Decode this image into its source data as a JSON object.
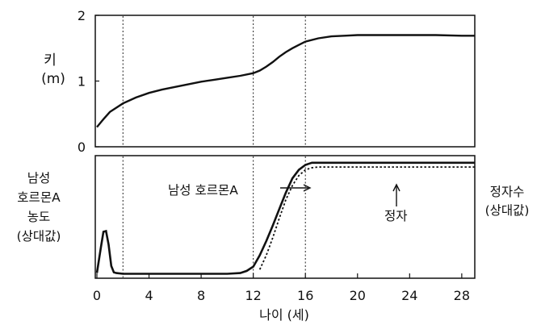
{
  "chart_data": [
    {
      "type": "line",
      "ylabel_lines": [
        "키",
        "(m)"
      ],
      "xlim": [
        0,
        29
      ],
      "ylim": [
        0,
        2
      ],
      "yticks": [
        0,
        1,
        2
      ],
      "series": [
        {
          "x": [
            0,
            0.5,
            1,
            2,
            3,
            4,
            5,
            6,
            7,
            8,
            9,
            10,
            11,
            12,
            12.5,
            13,
            13.5,
            14,
            14.5,
            15,
            15.5,
            16,
            17,
            18,
            19,
            20,
            22,
            24,
            26,
            28,
            29
          ],
          "y": [
            0.3,
            0.42,
            0.53,
            0.66,
            0.75,
            0.82,
            0.87,
            0.91,
            0.95,
            0.99,
            1.02,
            1.05,
            1.08,
            1.12,
            1.16,
            1.22,
            1.29,
            1.37,
            1.44,
            1.5,
            1.55,
            1.6,
            1.65,
            1.68,
            1.69,
            1.7,
            1.7,
            1.7,
            1.7,
            1.69,
            1.69
          ]
        }
      ]
    },
    {
      "type": "line",
      "xlim": [
        0,
        29
      ],
      "xticks": [
        0,
        4,
        8,
        12,
        16,
        20,
        24,
        28
      ],
      "xlabel": "나이 (세)",
      "left_label_lines": [
        "남성",
        "호르몬A",
        "농도",
        "(상대값)"
      ],
      "right_label_lines": [
        "정자수",
        "(상대값)"
      ],
      "series": [
        {
          "name": "남성 호르몬A",
          "style": "solid",
          "x": [
            0,
            0.3,
            0.5,
            0.7,
            0.9,
            1.1,
            1.3,
            1.5,
            2,
            4,
            6,
            8,
            10,
            11,
            11.5,
            12,
            12.5,
            13,
            13.5,
            14,
            14.5,
            15,
            15.5,
            16,
            16.5,
            17,
            18,
            20,
            24,
            28,
            29
          ],
          "y": [
            0.05,
            0.4,
            0.63,
            0.64,
            0.45,
            0.15,
            0.06,
            0.05,
            0.04,
            0.04,
            0.04,
            0.04,
            0.04,
            0.05,
            0.08,
            0.14,
            0.3,
            0.5,
            0.72,
            0.95,
            1.18,
            1.38,
            1.5,
            1.57,
            1.6,
            1.6,
            1.6,
            1.6,
            1.6,
            1.6,
            1.6
          ]
        },
        {
          "name": "정자",
          "style": "dotted",
          "x": [
            12.5,
            13,
            13.5,
            14,
            14.5,
            15,
            15.5,
            16,
            16.5,
            17,
            18,
            20,
            24,
            28,
            29
          ],
          "y": [
            0.1,
            0.3,
            0.55,
            0.82,
            1.08,
            1.28,
            1.42,
            1.5,
            1.53,
            1.54,
            1.54,
            1.54,
            1.54,
            1.54,
            1.54
          ]
        }
      ],
      "vlines": [
        2,
        12,
        16
      ]
    }
  ]
}
